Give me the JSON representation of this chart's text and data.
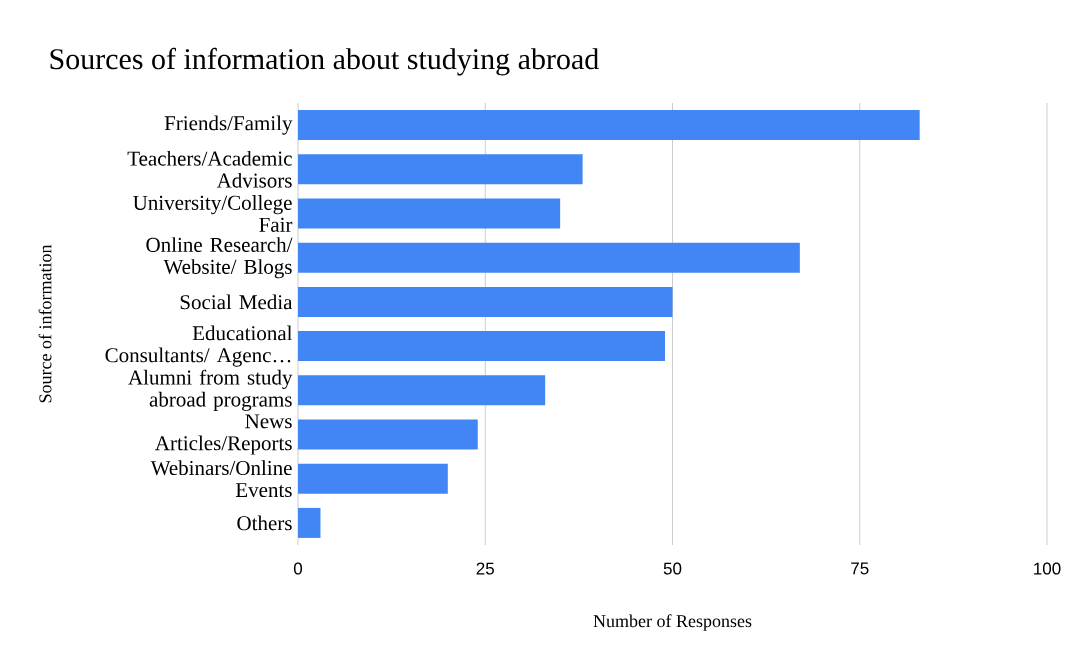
{
  "chart_data": {
    "type": "bar",
    "orientation": "horizontal",
    "title": "Sources of information about studying abroad",
    "xlabel": "Number of Responses",
    "ylabel": "Source of information",
    "categories": [
      "Friends/Family",
      "Teachers/Academic Advisors",
      "University/College Fair",
      "Online Research/ Website/ Blogs",
      "Social Media",
      "Educational Consultants/ Agenc…",
      "Alumni from study abroad programs",
      "News Articles/Reports",
      "Webinars/Online Events",
      "Others"
    ],
    "values": [
      83,
      38,
      35,
      67,
      50,
      49,
      33,
      24,
      20,
      3
    ],
    "color": "#4285f4",
    "xlim": [
      0,
      100
    ],
    "xticks": [
      0,
      25,
      50,
      75,
      100
    ],
    "grid": "x"
  }
}
